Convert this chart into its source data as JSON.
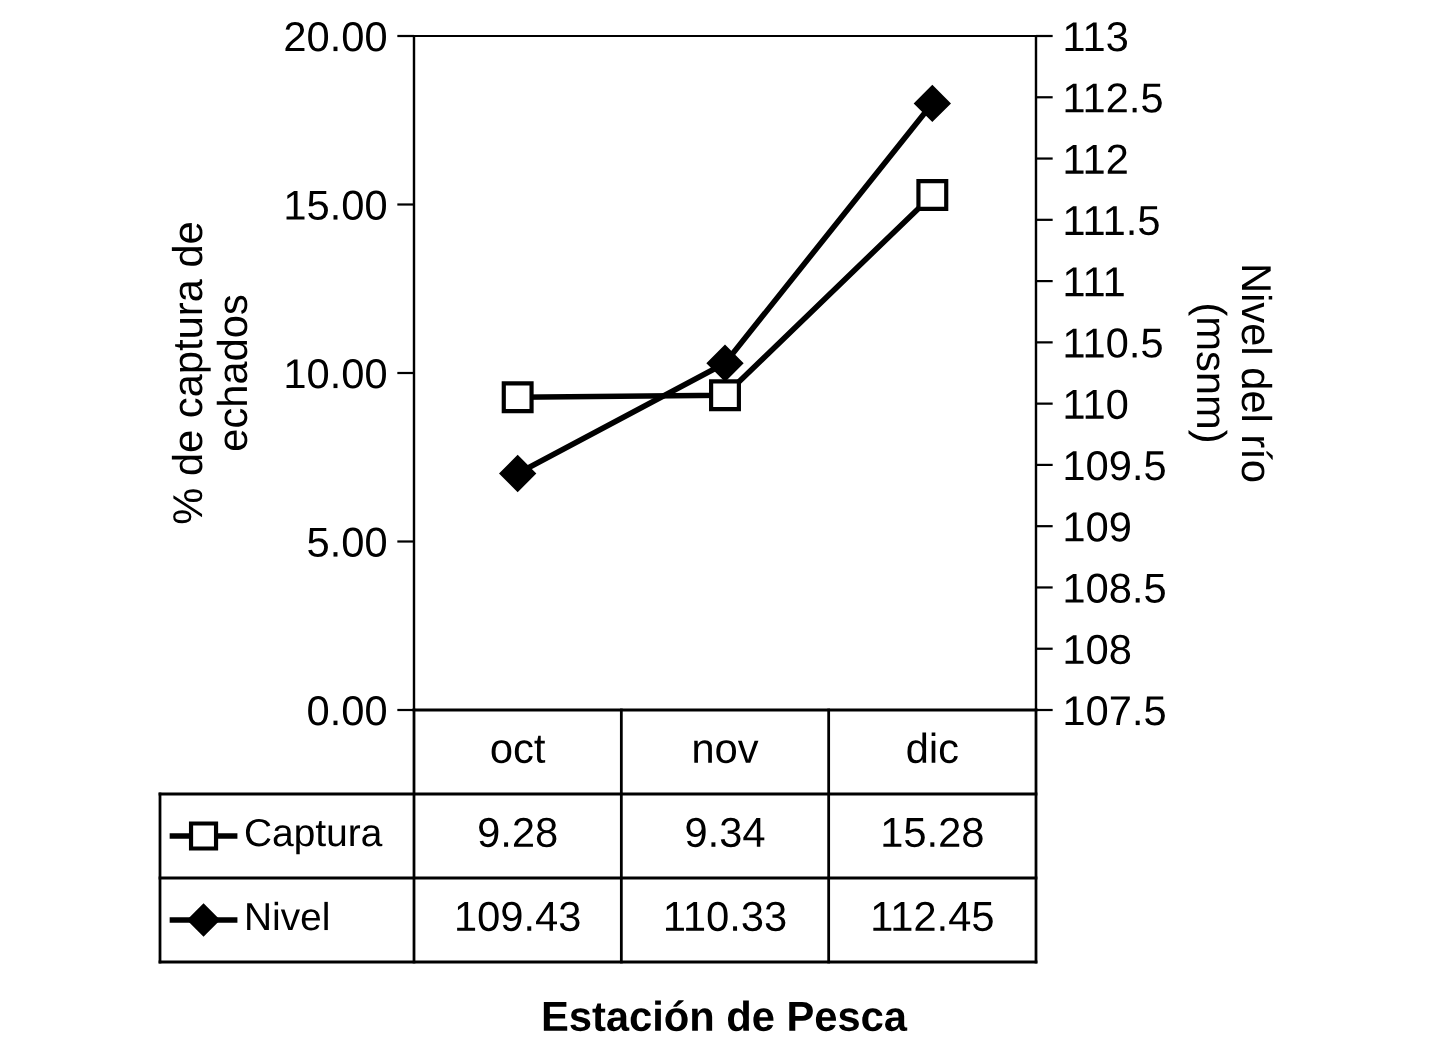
{
  "chart_data": {
    "type": "line",
    "categories": [
      "oct",
      "nov",
      "dic"
    ],
    "ylabel": "% de captura de\nechados",
    "y2label": "Nivel del río\n(msnm)",
    "annotations": [
      "Estación de Pesca"
    ],
    "series": [
      {
        "name": "Captura",
        "color": "#000000",
        "marker": "square",
        "values": [
          9.28,
          9.34,
          15.28
        ]
      },
      {
        "name": "Nivel",
        "color": "#000000",
        "marker": "diamond",
        "axis": "y2",
        "values": [
          109.43,
          110.33,
          112.45
        ]
      }
    ],
    "ylim": [
      0,
      20
    ],
    "yticks": [
      {
        "value": 0,
        "label": "0.00"
      },
      {
        "value": 5,
        "label": "5.00"
      },
      {
        "value": 10,
        "label": "10.00"
      },
      {
        "value": 15,
        "label": "15.00"
      },
      {
        "value": 20,
        "label": "20.00"
      }
    ],
    "y2lim": [
      107.5,
      113
    ],
    "y2ticks": [
      107.5,
      108,
      108.5,
      109,
      109.5,
      110,
      110.5,
      111,
      111.5,
      112,
      112.5,
      113
    ],
    "data_labels": true,
    "legend": "bottom",
    "grid": false
  }
}
